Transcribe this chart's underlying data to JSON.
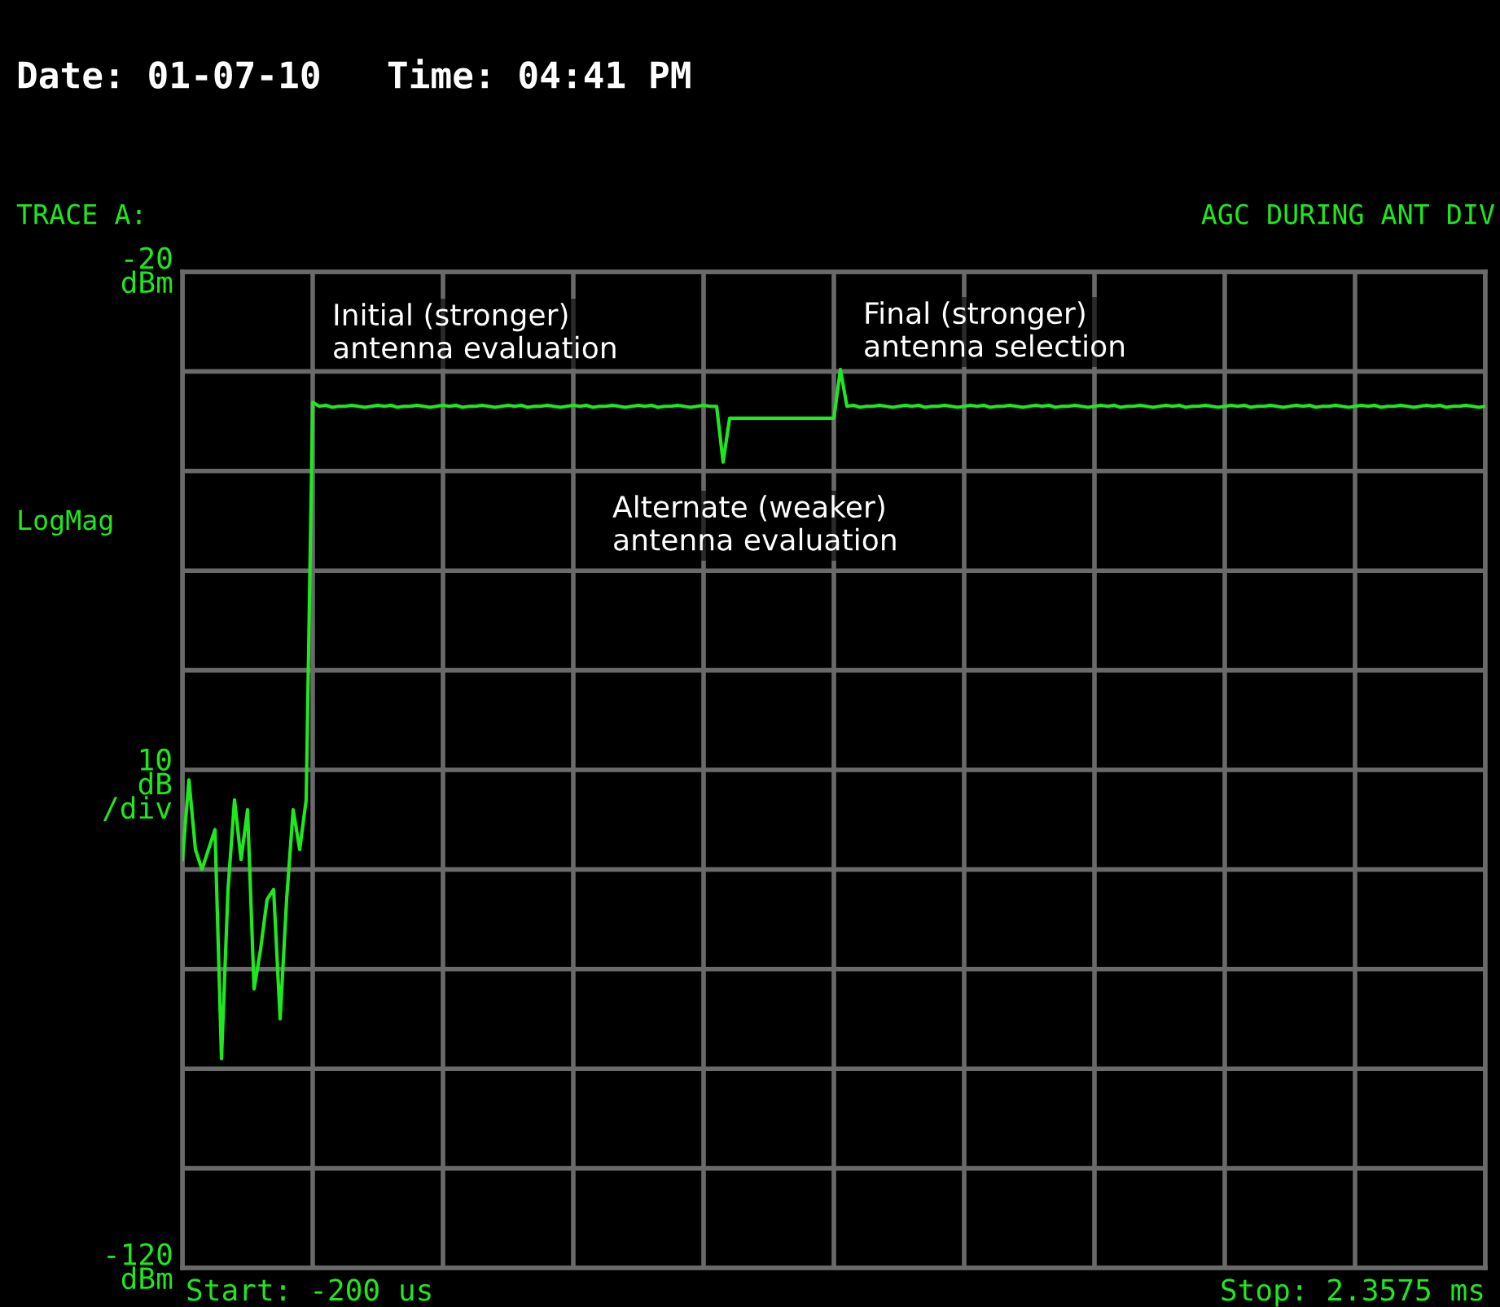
{
  "chart_data": {
    "type": "line",
    "title": "Date: 01-07-10   Time: 04:41 PM",
    "subtitle": "TRACE A:",
    "ylabel": "10\ndB\n/div",
    "annotations": [
      "Initial (stronger)\nantenna evaluation",
      "Alternate (weaker)\nantenna evaluation",
      "Final (stronger)\nantenna selection",
      "AGC DURING ANT DIV",
      "LogMag",
      "Start: -200 us",
      "Stop: 2.3575 ms"
    ],
    "categories": [
      null,
      null,
      null,
      null,
      null,
      null,
      null,
      null,
      null,
      null,
      null,
      null,
      null,
      null,
      null,
      null,
      null,
      null,
      null,
      null,
      null,
      null,
      null,
      null,
      null,
      null,
      null,
      null,
      null,
      null,
      null,
      null,
      null,
      null,
      null,
      null,
      null,
      null,
      null,
      null,
      null,
      null,
      null,
      null,
      null,
      null,
      null,
      null,
      null,
      null,
      null,
      null,
      null,
      null,
      null,
      null,
      null,
      null,
      null,
      null,
      null,
      null,
      null,
      null,
      null,
      null,
      null,
      null,
      null,
      null,
      null,
      null,
      null,
      null,
      null,
      null,
      null,
      null,
      null,
      null,
      null,
      null,
      null,
      null,
      null,
      null,
      null,
      null,
      null,
      null,
      null,
      null,
      null,
      null,
      null,
      null,
      null,
      null,
      null,
      null,
      null,
      null,
      null,
      null,
      null,
      null,
      null,
      null,
      null,
      null,
      null,
      null,
      null,
      null,
      null,
      null,
      null,
      null,
      null,
      null,
      null,
      null,
      null,
      null,
      null,
      null,
      null,
      null,
      null,
      null,
      null,
      null,
      null,
      null,
      null,
      null,
      null,
      null,
      null,
      null,
      null,
      null,
      null,
      null,
      null,
      null,
      null,
      null,
      null,
      null,
      null,
      null,
      null,
      null,
      null,
      null,
      null,
      null,
      null,
      null,
      null,
      null,
      null,
      null,
      null,
      null,
      null,
      null,
      null,
      null,
      null,
      null,
      null,
      null,
      null,
      null,
      null,
      null,
      null,
      null,
      null,
      null,
      null,
      null,
      null,
      null,
      null,
      null,
      null,
      null,
      null,
      null,
      null,
      null,
      null,
      null,
      null,
      null,
      null,
      null,
      null
    ],
    "series": [
      {
        "color": "#1ee81e",
        "values": [
          -79,
          -71,
          -78,
          -80,
          -78,
          -76,
          -99,
          -82,
          -73,
          -79,
          -74,
          -92,
          -88,
          -83,
          -82,
          -95,
          -83,
          -74,
          -78,
          -73,
          -33.1,
          -33.5,
          -33.4,
          -33.6,
          -33.5,
          -33.5,
          -33.4,
          -33.5,
          -33.6,
          -33.5,
          -33.4,
          -33.5,
          -33.4,
          -33.6,
          -33.5,
          -33.5,
          -33.4,
          -33.5,
          -33.6,
          -33.5,
          -33.4,
          -33.5,
          -33.4,
          -33.6,
          -33.5,
          -33.5,
          -33.4,
          -33.5,
          -33.6,
          -33.5,
          -33.4,
          -33.5,
          -33.4,
          -33.6,
          -33.5,
          -33.5,
          -33.4,
          -33.5,
          -33.6,
          -33.5,
          -33.4,
          -33.5,
          -33.4,
          -33.6,
          -33.5,
          -33.5,
          -33.4,
          -33.5,
          -33.6,
          -33.5,
          -33.4,
          -33.5,
          -33.4,
          -33.6,
          -33.5,
          -33.5,
          -33.4,
          -33.5,
          -33.6,
          -33.5,
          -33.4,
          -33.5,
          -33.5,
          -39.1,
          -34.7,
          -34.7,
          -34.7,
          -34.7,
          -34.7,
          -34.7,
          -34.7,
          -34.7,
          -34.7,
          -34.7,
          -34.7,
          -34.7,
          -34.7,
          -34.7,
          -34.7,
          -34.7,
          -34.7,
          -29.8,
          -33.5,
          -33.4,
          -33.6,
          -33.5,
          -33.5,
          -33.4,
          -33.5,
          -33.6,
          -33.5,
          -33.4,
          -33.5,
          -33.4,
          -33.6,
          -33.5,
          -33.5,
          -33.4,
          -33.5,
          -33.6,
          -33.5,
          -33.4,
          -33.5,
          -33.4,
          -33.6,
          -33.5,
          -33.5,
          -33.4,
          -33.5,
          -33.6,
          -33.5,
          -33.4,
          -33.5,
          -33.4,
          -33.6,
          -33.5,
          -33.5,
          -33.4,
          -33.5,
          -33.6,
          -33.5,
          -33.4,
          -33.5,
          -33.4,
          -33.6,
          -33.5,
          -33.5,
          -33.4,
          -33.5,
          -33.6,
          -33.5,
          -33.4,
          -33.5,
          -33.4,
          -33.6,
          -33.5,
          -33.5,
          -33.4,
          -33.5,
          -33.6,
          -33.5,
          -33.4,
          -33.5,
          -33.4,
          -33.6,
          -33.5,
          -33.5,
          -33.4,
          -33.5,
          -33.6,
          -33.5,
          -33.4,
          -33.5,
          -33.4,
          -33.6,
          -33.5,
          -33.5,
          -33.4,
          -33.5,
          -33.6,
          -33.5,
          -33.4,
          -33.5,
          -33.4,
          -33.6,
          -33.5,
          -33.5,
          -33.4,
          -33.5,
          -33.6,
          -33.5,
          -33.4,
          -33.5,
          -33.4,
          -33.6,
          -33.5,
          -33.5,
          -33.4,
          -33.5,
          -33.6,
          -33.5
        ]
      }
    ],
    "ylim": [
      -120,
      -20
    ],
    "yticks": [
      {
        "value": -20,
        "label": "-20\ndBm"
      },
      {
        "value": -30,
        "label": null
      },
      {
        "value": -40,
        "label": null
      },
      {
        "value": -50,
        "label": null
      },
      {
        "value": -60,
        "label": null
      },
      {
        "value": -70,
        "label": null
      },
      {
        "value": -80,
        "label": null
      },
      {
        "value": -90,
        "label": null
      },
      {
        "value": -100,
        "label": null
      },
      {
        "value": -110,
        "label": null
      },
      {
        "value": -120,
        "label": "-120\ndBm"
      }
    ],
    "tick_labels": "y",
    "grid": true,
    "legend": false,
    "marker": "none",
    "line_style": "solid"
  }
}
